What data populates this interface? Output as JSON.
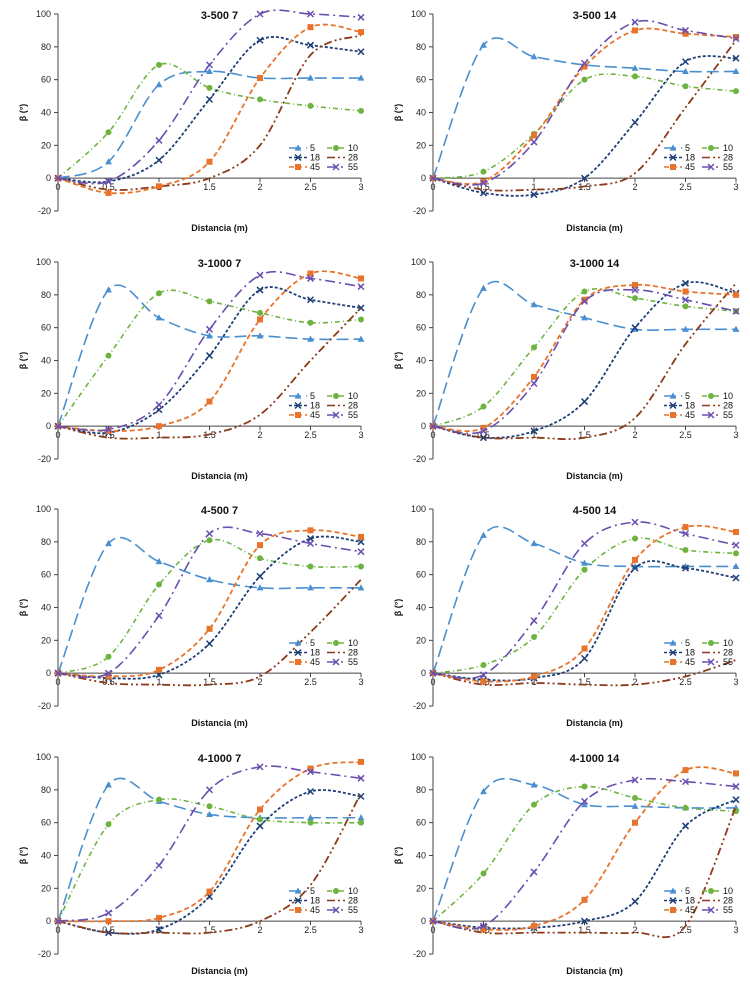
{
  "chart_data": [
    {
      "type": "line",
      "title": "3-500 7",
      "xlabel": "Distancia (m)",
      "ylabel": "β (°)",
      "xlim": [
        0,
        3
      ],
      "ylim": [
        -20,
        100
      ],
      "x": [
        0,
        0.5,
        1,
        1.5,
        2,
        2.5,
        3
      ],
      "series": [
        {
          "name": "5",
          "values": [
            0,
            10,
            57,
            65,
            61,
            61,
            61
          ]
        },
        {
          "name": "10",
          "values": [
            0,
            28,
            69,
            55,
            48,
            44,
            41
          ]
        },
        {
          "name": "18",
          "values": [
            0,
            -2,
            11,
            48,
            84,
            81,
            77
          ]
        },
        {
          "name": "28",
          "values": [
            0,
            -7,
            -5,
            0,
            20,
            75,
            87
          ]
        },
        {
          "name": "45",
          "values": [
            0,
            -9,
            -5,
            10,
            61,
            92,
            89
          ]
        },
        {
          "name": "55",
          "values": [
            0,
            -2,
            23,
            69,
            100,
            100,
            98
          ]
        }
      ]
    },
    {
      "type": "line",
      "title": "3-500 14",
      "xlabel": "Distancia (m)",
      "ylabel": "β (°)",
      "xlim": [
        0,
        3
      ],
      "ylim": [
        -20,
        100
      ],
      "x": [
        0,
        0.5,
        1,
        1.5,
        2,
        2.5,
        3
      ],
      "series": [
        {
          "name": "5",
          "values": [
            0,
            81,
            74,
            69,
            67,
            65,
            65
          ]
        },
        {
          "name": "10",
          "values": [
            0,
            4,
            27,
            60,
            62,
            56,
            53
          ]
        },
        {
          "name": "18",
          "values": [
            0,
            -9,
            -10,
            0,
            34,
            71,
            73
          ]
        },
        {
          "name": "28",
          "values": [
            0,
            -7,
            -7,
            -5,
            3,
            43,
            84
          ]
        },
        {
          "name": "45",
          "values": [
            0,
            -2,
            26,
            68,
            90,
            88,
            86
          ]
        },
        {
          "name": "55",
          "values": [
            0,
            -3,
            22,
            70,
            95,
            90,
            85
          ]
        }
      ]
    },
    {
      "type": "line",
      "title": "3-1000 7",
      "xlabel": "Distancia (m)",
      "ylabel": "β (°)",
      "xlim": [
        0,
        3
      ],
      "ylim": [
        -20,
        100
      ],
      "x": [
        0,
        0.5,
        1,
        1.5,
        2,
        2.5,
        3
      ],
      "series": [
        {
          "name": "5",
          "values": [
            0,
            83,
            66,
            55,
            55,
            53,
            53
          ]
        },
        {
          "name": "10",
          "values": [
            0,
            43,
            81,
            76,
            69,
            63,
            65
          ]
        },
        {
          "name": "18",
          "values": [
            0,
            -4,
            10,
            43,
            83,
            77,
            72
          ]
        },
        {
          "name": "28",
          "values": [
            0,
            -7,
            -7,
            -5,
            7,
            40,
            72
          ]
        },
        {
          "name": "45",
          "values": [
            0,
            -3,
            0,
            15,
            65,
            93,
            90
          ]
        },
        {
          "name": "55",
          "values": [
            0,
            -2,
            13,
            59,
            92,
            90,
            85
          ]
        }
      ]
    },
    {
      "type": "line",
      "title": "3-1000 14",
      "xlabel": "Distancia (m)",
      "ylabel": "β (°)",
      "xlim": [
        0,
        3
      ],
      "ylim": [
        -20,
        100
      ],
      "x": [
        0,
        0.5,
        1,
        1.5,
        2,
        2.5,
        3
      ],
      "series": [
        {
          "name": "5",
          "values": [
            0,
            84,
            74,
            66,
            59,
            59,
            59
          ]
        },
        {
          "name": "10",
          "values": [
            0,
            12,
            48,
            82,
            78,
            73,
            70
          ]
        },
        {
          "name": "18",
          "values": [
            0,
            -7,
            -3,
            15,
            60,
            87,
            81
          ]
        },
        {
          "name": "28",
          "values": [
            0,
            -7,
            -7,
            -7,
            5,
            50,
            87
          ]
        },
        {
          "name": "45",
          "values": [
            0,
            -1,
            30,
            77,
            86,
            82,
            80
          ]
        },
        {
          "name": "55",
          "values": [
            0,
            -3,
            26,
            76,
            83,
            77,
            70
          ]
        }
      ]
    },
    {
      "type": "line",
      "title": "4-500 7",
      "xlabel": "Distancia (m)",
      "ylabel": "β (°)",
      "xlim": [
        0,
        3
      ],
      "ylim": [
        -20,
        100
      ],
      "x": [
        0,
        0.5,
        1,
        1.5,
        2,
        2.5,
        3
      ],
      "series": [
        {
          "name": "5",
          "values": [
            0,
            79,
            68,
            57,
            52,
            52,
            52
          ]
        },
        {
          "name": "10",
          "values": [
            0,
            10,
            54,
            81,
            70,
            65,
            65
          ]
        },
        {
          "name": "18",
          "values": [
            0,
            -3,
            -1,
            18,
            59,
            82,
            80
          ]
        },
        {
          "name": "28",
          "values": [
            0,
            -6,
            -7,
            -7,
            -2,
            25,
            57
          ]
        },
        {
          "name": "45",
          "values": [
            0,
            -2,
            2,
            27,
            78,
            87,
            83
          ]
        },
        {
          "name": "55",
          "values": [
            0,
            0,
            35,
            85,
            85,
            79,
            74
          ]
        }
      ]
    },
    {
      "type": "line",
      "title": "4-500 14",
      "xlabel": "Distancia (m)",
      "ylabel": "β (°)",
      "xlim": [
        0,
        3
      ],
      "ylim": [
        -20,
        100
      ],
      "x": [
        0,
        0.5,
        1,
        1.5,
        2,
        2.5,
        3
      ],
      "series": [
        {
          "name": "5",
          "values": [
            0,
            84,
            79,
            67,
            65,
            65,
            65
          ]
        },
        {
          "name": "10",
          "values": [
            0,
            5,
            22,
            63,
            82,
            75,
            73
          ]
        },
        {
          "name": "18",
          "values": [
            0,
            -4,
            -3,
            9,
            64,
            64,
            58
          ]
        },
        {
          "name": "28",
          "values": [
            0,
            -7,
            -6,
            -7,
            -7,
            -2,
            8
          ]
        },
        {
          "name": "45",
          "values": [
            0,
            -5,
            -2,
            15,
            69,
            89,
            86
          ]
        },
        {
          "name": "55",
          "values": [
            0,
            -1,
            32,
            79,
            92,
            85,
            78
          ]
        }
      ]
    },
    {
      "type": "line",
      "title": "4-1000 7",
      "xlabel": "Distancia (m)",
      "ylabel": "β (°)",
      "xlim": [
        0,
        3
      ],
      "ylim": [
        -20,
        100
      ],
      "x": [
        0,
        0.5,
        1,
        1.5,
        2,
        2.5,
        3
      ],
      "series": [
        {
          "name": "5",
          "values": [
            0,
            83,
            73,
            65,
            63,
            63,
            63
          ]
        },
        {
          "name": "10",
          "values": [
            0,
            59,
            74,
            70,
            62,
            60,
            60
          ]
        },
        {
          "name": "18",
          "values": [
            0,
            -7,
            -5,
            15,
            58,
            79,
            76
          ]
        },
        {
          "name": "28",
          "values": [
            0,
            -7,
            -7,
            -7,
            0,
            22,
            78
          ]
        },
        {
          "name": "45",
          "values": [
            0,
            0,
            2,
            18,
            68,
            93,
            97
          ]
        },
        {
          "name": "55",
          "values": [
            0,
            5,
            34,
            80,
            94,
            91,
            87
          ]
        }
      ]
    },
    {
      "type": "line",
      "title": "4-1000 14",
      "xlabel": "Distancia (m)",
      "ylabel": "β (°)",
      "xlim": [
        0,
        3
      ],
      "ylim": [
        -20,
        100
      ],
      "x": [
        0,
        0.5,
        1,
        1.5,
        2,
        2.5,
        3
      ],
      "series": [
        {
          "name": "5",
          "values": [
            0,
            79,
            83,
            71,
            70,
            69,
            69
          ]
        },
        {
          "name": "10",
          "values": [
            0,
            29,
            71,
            82,
            75,
            69,
            67
          ]
        },
        {
          "name": "18",
          "values": [
            0,
            -4,
            -4,
            0,
            12,
            58,
            74
          ]
        },
        {
          "name": "28",
          "values": [
            0,
            -7,
            -7,
            -7,
            -7,
            -3,
            70
          ]
        },
        {
          "name": "45",
          "values": [
            0,
            -5,
            -3,
            13,
            60,
            92,
            90
          ]
        },
        {
          "name": "55",
          "values": [
            0,
            -3,
            30,
            73,
            86,
            85,
            82
          ]
        }
      ]
    }
  ],
  "style": {
    "series_colors": [
      "#4a8fd0",
      "#6db33f",
      "#1f3f78",
      "#8b3a1a",
      "#e8742c",
      "#6a4fb0"
    ],
    "marker_shapes": [
      "triangle",
      "circle",
      "x",
      "none",
      "square",
      "x"
    ],
    "legend_position": "bottom-right"
  }
}
